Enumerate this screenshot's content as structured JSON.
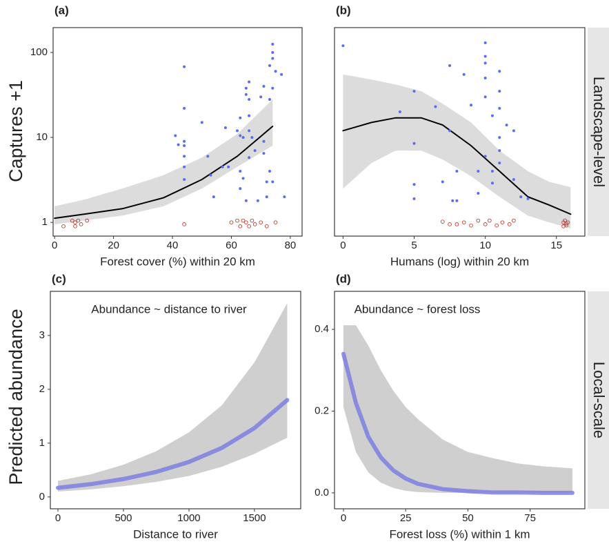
{
  "chart_data": [
    {
      "type": "line",
      "panel_label": "(a)",
      "xlabel": "Forest cover (%) within 20 km",
      "ylabel": "Captures +1",
      "log_y": true,
      "xlim": [
        -0.5,
        84
      ],
      "ylim": [
        0.69,
        196
      ],
      "xticks": [
        0,
        20,
        40,
        60,
        80
      ],
      "yticks": [
        1,
        10,
        100
      ],
      "x": [
        0,
        10,
        23,
        37,
        50,
        62,
        74
      ],
      "fit": [
        1.12,
        1.25,
        1.45,
        1.95,
        3.2,
        6,
        13.5
      ],
      "lower": [
        0.95,
        1.05,
        1.2,
        1.55,
        2.5,
        4.5,
        8
      ],
      "upper": [
        1.55,
        1.85,
        2.5,
        3.6,
        5.8,
        11,
        28
      ],
      "fit_color": "#000000",
      "band_color": "#dcdcdc",
      "points": [
        {
          "color": "#5a6cf0",
          "filled": true,
          "x": [
            44,
            44,
            44,
            44,
            44,
            44,
            44,
            41,
            42,
            50,
            52,
            53,
            54,
            57,
            58,
            59,
            62,
            63,
            63,
            63,
            64,
            64,
            65,
            65,
            66,
            66,
            66,
            66,
            66,
            67,
            68,
            70,
            71,
            71,
            71,
            72,
            72,
            73,
            73,
            73,
            74,
            74,
            74,
            74,
            75,
            77,
            78,
            74,
            65,
            63,
            69
          ],
          "values": [
            68,
            22,
            9,
            8,
            6,
            4.5,
            3.2,
            10.5,
            8.2,
            15,
            6,
            3.6,
            2,
            4.5,
            13,
            4.5,
            12,
            17,
            4,
            10.5,
            10,
            3.3,
            38,
            32,
            45,
            28,
            18,
            12,
            5.8,
            10,
            7,
            30,
            40,
            9,
            6.5,
            3,
            2,
            4,
            70,
            28,
            125,
            100,
            85,
            38,
            60,
            55,
            2,
            3,
            1.8,
            2.5,
            1.8
          ]
        },
        {
          "color": "#c0392b",
          "filled": false,
          "x": [
            3,
            6,
            7,
            7,
            8,
            9,
            11,
            44,
            60,
            62,
            63,
            64,
            65,
            66,
            67,
            68,
            70,
            72,
            75
          ],
          "values": [
            0.9,
            1.05,
            1,
            0.9,
            1.05,
            0.95,
            1.05,
            0.95,
            1,
            1.05,
            0.9,
            1.05,
            1,
            0.9,
            1.05,
            0.95,
            1,
            0.9,
            1
          ]
        }
      ]
    },
    {
      "type": "line",
      "panel_label": "(b)",
      "xlabel": "Humans (log) within 20 km",
      "strip_label": "Landscape-level",
      "log_y": true,
      "xlim": [
        -0.6,
        17
      ],
      "ylim": [
        0.69,
        196
      ],
      "xticks": [
        0,
        5,
        10,
        15
      ],
      "x": [
        0,
        2,
        3.7,
        5.5,
        7,
        9,
        11,
        13,
        14.5,
        16
      ],
      "fit": [
        12,
        15,
        17,
        17,
        14,
        8,
        4,
        2,
        1.6,
        1.25
      ],
      "lower": [
        2.5,
        5,
        7,
        7,
        5.5,
        3.5,
        2,
        1.2,
        1.0,
        0.85
      ],
      "upper": [
        55,
        48,
        42,
        35,
        25,
        15,
        7,
        4,
        3,
        2.6
      ],
      "fit_color": "#000000",
      "band_color": "#dcdcdc",
      "points": [
        {
          "color": "#5a6cf0",
          "filled": true,
          "x": [
            0,
            4,
            5,
            5,
            5,
            5,
            6.5,
            7,
            7.5,
            7.5,
            7.7,
            8,
            8,
            8.5,
            9,
            9.5,
            9.5,
            10,
            10,
            10,
            10,
            10,
            10,
            10.5,
            10.5,
            10.5,
            11,
            11,
            11,
            11,
            11,
            11,
            11.5,
            12,
            12,
            12.5,
            13
          ],
          "values": [
            120,
            20,
            8.5,
            2.8,
            35,
            1.9,
            23,
            3,
            12,
            70,
            1.8,
            4,
            1.8,
            55,
            24,
            4,
            2.2,
            130,
            90,
            75,
            50,
            30,
            6,
            18,
            4,
            2.9,
            60,
            35,
            22,
            10,
            7,
            5,
            14,
            3.2,
            12,
            2,
            1.9
          ]
        },
        {
          "color": "#c0392b",
          "filled": false,
          "x": [
            7,
            7.5,
            8,
            8.5,
            9,
            9.5,
            10,
            10.3,
            10.8,
            11.2,
            11.7,
            12,
            15.5,
            15.6,
            15.7,
            15.8,
            15.7,
            15.5
          ],
          "values": [
            1.02,
            0.95,
            0.95,
            1,
            0.92,
            1.05,
            0.95,
            1.05,
            0.92,
            1,
            0.95,
            1.05,
            1,
            1.05,
            0.92,
            1,
            0.97,
            0.9
          ]
        }
      ]
    },
    {
      "type": "line",
      "panel_label": "(c)",
      "xlabel": "Distance to river",
      "ylabel": "Predicted abundance",
      "annotation": "Abundance ~ distance to river",
      "xlim": [
        -58,
        1853
      ],
      "ylim": [
        -0.22,
        3.82
      ],
      "xticks": [
        0,
        500,
        1000,
        1500
      ],
      "yticks": [
        0,
        1,
        2,
        3
      ],
      "x": [
        0,
        250,
        500,
        750,
        1000,
        1250,
        1500,
        1750
      ],
      "fit": [
        0.17,
        0.238,
        0.333,
        0.465,
        0.65,
        0.91,
        1.28,
        1.8
      ],
      "lower": [
        0.1,
        0.14,
        0.2,
        0.28,
        0.39,
        0.56,
        0.8,
        1.1
      ],
      "upper": [
        0.3,
        0.42,
        0.6,
        0.85,
        1.2,
        1.7,
        2.5,
        3.6
      ],
      "fit_color": "#7d7fe0",
      "band_color": "#cfcfcf"
    },
    {
      "type": "line",
      "panel_label": "(d)",
      "xlabel": "Forest loss (%) within 1 km",
      "strip_label": "Local-scale",
      "annotation": "Abundance ~ forest loss",
      "xlim": [
        -3.6,
        97
      ],
      "ylim": [
        -0.039,
        0.493
      ],
      "xticks": [
        0,
        25,
        50,
        75
      ],
      "yticks": [
        {
          "value": 0,
          "label": "0.0"
        },
        {
          "value": 0.2,
          "label": "0.2"
        },
        {
          "value": 0.4,
          "label": "0.4"
        }
      ],
      "x": [
        0,
        5,
        10,
        15,
        20,
        25,
        30,
        40,
        50,
        60,
        70,
        80,
        92
      ],
      "fit": [
        0.34,
        0.22,
        0.137,
        0.087,
        0.055,
        0.035,
        0.022,
        0.009,
        0.004,
        0.001,
        0.001,
        0,
        0
      ],
      "lower": [
        0.21,
        0.1,
        0.05,
        0.025,
        0.012,
        0.005,
        0.002,
        0,
        0,
        0,
        0,
        0,
        0
      ],
      "upper": [
        0.41,
        0.41,
        0.36,
        0.3,
        0.25,
        0.21,
        0.18,
        0.13,
        0.1,
        0.085,
        0.072,
        0.065,
        0.06
      ],
      "fit_color": "#7d7fe0",
      "band_color": "#cfcfcf"
    }
  ]
}
